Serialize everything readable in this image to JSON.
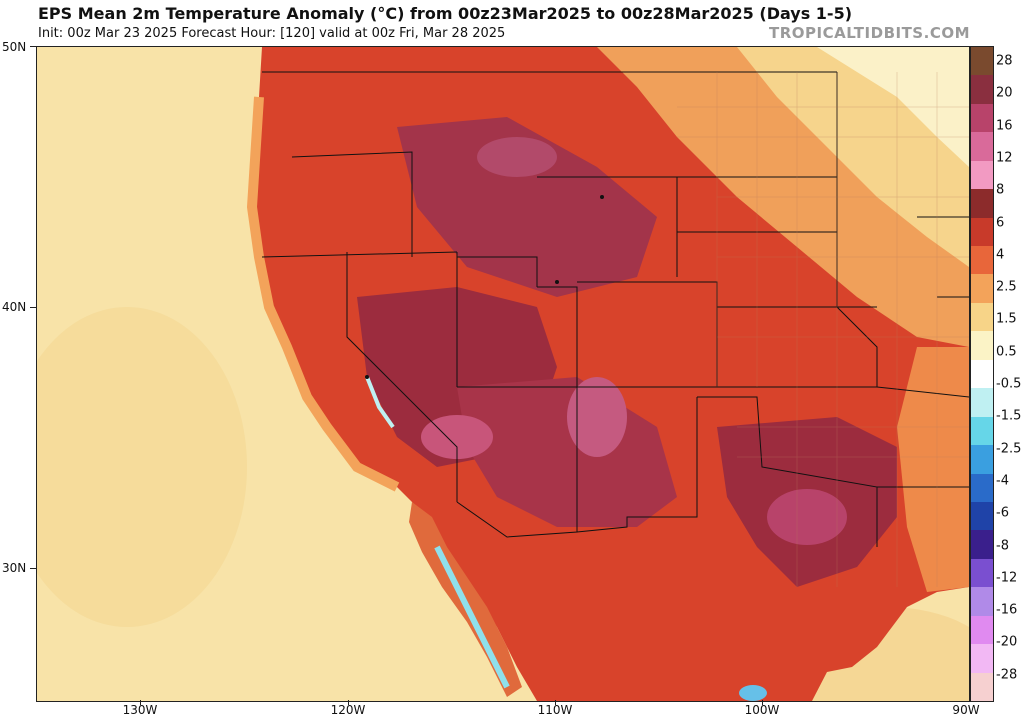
{
  "header": {
    "title": "EPS Mean 2m Temperature Anomaly (°C) from 00z23Mar2025 to 00z28Mar2025 (Days 1-5)",
    "subtitle": "Init: 00z Mar 23 2025   Forecast Hour: [120]   valid at 00z Fri, Mar 28 2025",
    "brand": "TROPICALTIDBITS.COM"
  },
  "axes": {
    "lat_labels": [
      "50N",
      "40N",
      "30N"
    ],
    "lon_labels": [
      "130W",
      "120W",
      "110W",
      "100W",
      "90W"
    ]
  },
  "colorbar": {
    "labels": [
      "28",
      "20",
      "16",
      "12",
      "8",
      "6",
      "4",
      "2.5",
      "1.5",
      "0.5",
      "-0.5",
      "-1.5",
      "-2.5",
      "-4",
      "-6",
      "-8",
      "-12",
      "-16",
      "-20",
      "-28"
    ],
    "colors": [
      "#7a4a2e",
      "#8a2f3f",
      "#b8436a",
      "#d96a9a",
      "#f29ac2",
      "#8c2b2b",
      "#c83a2a",
      "#e8663a",
      "#f3a35a",
      "#f7d488",
      "#fbf3c6",
      "#ffffff",
      "#bff0f2",
      "#66d6e8",
      "#3a9fe0",
      "#2a6bc9",
      "#1f43a8",
      "#3a1f8c",
      "#7a4fd0",
      "#b08ae8",
      "#e08af0",
      "#f2b8f4",
      "#f6d0d0"
    ]
  },
  "map": {
    "ocean_color": "#f8e3a8",
    "warm_color": "#d8432b",
    "hot_color": "#9c2c3e",
    "hottest_color": "#c8557a",
    "mild_color": "#f0a05a",
    "neutral_color": "#fbf1c8",
    "cool_color": "#8fe0ec"
  }
}
